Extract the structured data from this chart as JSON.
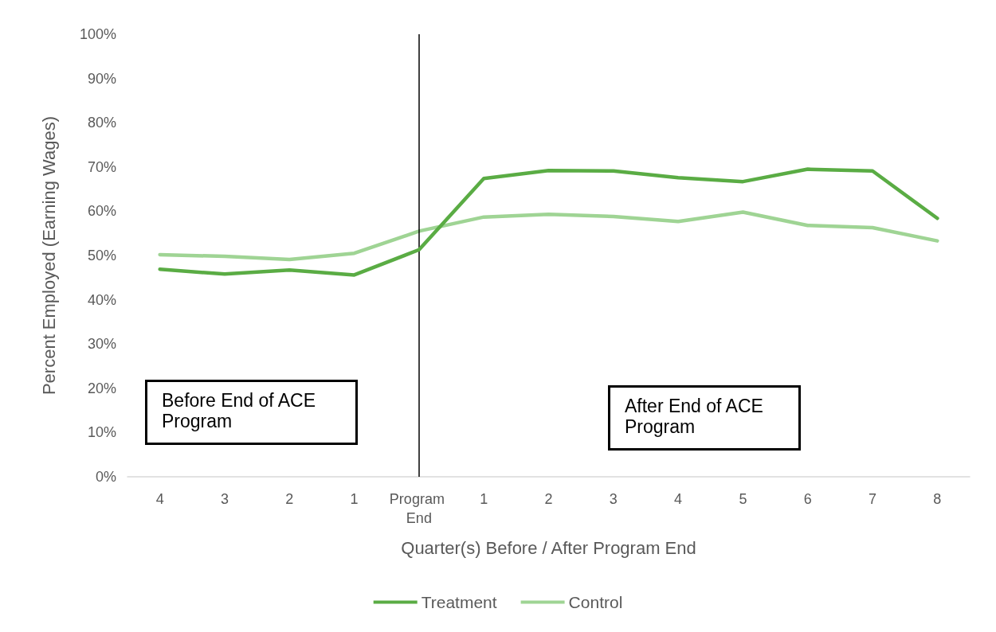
{
  "chart_data": {
    "type": "line",
    "xlabel": "Quarter(s) Before / After Program End",
    "ylabel": "Percent Employed (Earning Wages)",
    "categories": [
      "4",
      "3",
      "2",
      "1",
      "Program End",
      "1",
      "2",
      "3",
      "4",
      "5",
      "6",
      "7",
      "8"
    ],
    "series": [
      {
        "name": "Treatment",
        "color": "#5aac44",
        "values": [
          46.9,
          45.8,
          46.7,
          45.6,
          51.3,
          67.4,
          69.2,
          69.1,
          67.6,
          66.7,
          69.5,
          69.1,
          58.4
        ]
      },
      {
        "name": "Control",
        "color": "#9fd494",
        "values": [
          50.2,
          49.8,
          49.1,
          50.5,
          55.5,
          58.7,
          59.3,
          58.8,
          57.7,
          59.8,
          56.8,
          56.3,
          53.3
        ]
      }
    ],
    "ylim": [
      0,
      100
    ],
    "yticks": [
      {
        "value": 0,
        "label": "0%"
      },
      {
        "value": 10,
        "label": "10%"
      },
      {
        "value": 20,
        "label": "20%"
      },
      {
        "value": 30,
        "label": "30%"
      },
      {
        "value": 40,
        "label": "40%"
      },
      {
        "value": 50,
        "label": "50%"
      },
      {
        "value": 60,
        "label": "60%"
      },
      {
        "value": 70,
        "label": "70%"
      },
      {
        "value": 80,
        "label": "80%"
      },
      {
        "value": 90,
        "label": "90%"
      },
      {
        "value": 100,
        "label": "100%"
      }
    ],
    "ref_lines": [
      {
        "axis": "x",
        "value": "Program End",
        "color": "#000000"
      }
    ],
    "annotations": [
      "Before End of ACE Program",
      "After End of ACE Program"
    ],
    "grid": false,
    "legend": "bottom",
    "marker": "none",
    "line_style": "solid"
  }
}
